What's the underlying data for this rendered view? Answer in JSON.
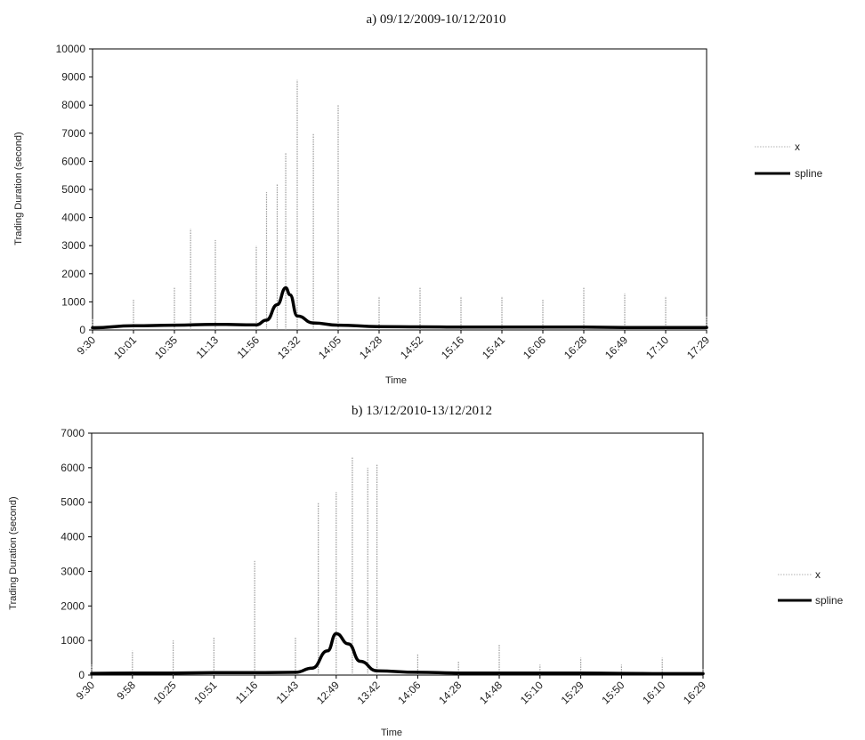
{
  "chart_data": [
    {
      "type": "line",
      "title": "a) 09/12/2009-10/12/2010",
      "xlabel": "Time",
      "ylabel": "Trading Duration (second)",
      "ylim": [
        0,
        10000
      ],
      "y_ticks": [
        "0",
        "1000",
        "2000",
        "3000",
        "4000",
        "5000",
        "6000",
        "7000",
        "8000",
        "9000",
        "10000"
      ],
      "x_tick_labels": [
        "9:30",
        "10:01",
        "10:35",
        "11:13",
        "11:56",
        "13:32",
        "14:05",
        "14:28",
        "14:52",
        "15:16",
        "15:41",
        "16:06",
        "16:28",
        "16:49",
        "17:10",
        "17:29"
      ],
      "grid": false,
      "legend": {
        "position": "right",
        "entries": [
          "x",
          "spline"
        ]
      },
      "series": [
        {
          "name": "x",
          "style": "thin dotted gray vertical spikes",
          "color": "#9a9a9a",
          "x": [
            "9:30",
            "10:01",
            "10:35",
            "10:50",
            "11:13",
            "11:56",
            "12:20",
            "12:45",
            "13:05",
            "13:32",
            "13:45",
            "14:05",
            "14:28",
            "14:52",
            "15:16",
            "15:41",
            "16:06",
            "16:28",
            "16:49",
            "17:10",
            "17:29"
          ],
          "values": [
            400,
            1100,
            1500,
            3600,
            3200,
            3000,
            4900,
            5200,
            6300,
            8900,
            7000,
            8000,
            1200,
            1500,
            1200,
            1200,
            1100,
            1500,
            1300,
            1200,
            500
          ]
        },
        {
          "name": "spline",
          "style": "thick solid black line",
          "color": "#000000",
          "x": [
            "9:30",
            "10:01",
            "10:35",
            "11:13",
            "11:56",
            "12:20",
            "12:45",
            "13:05",
            "13:15",
            "13:32",
            "13:45",
            "14:05",
            "14:28",
            "14:52",
            "15:16",
            "15:41",
            "16:06",
            "16:28",
            "16:49",
            "17:10",
            "17:29"
          ],
          "values": [
            80,
            150,
            170,
            200,
            180,
            350,
            900,
            1500,
            1250,
            500,
            250,
            170,
            120,
            110,
            100,
            100,
            100,
            100,
            90,
            90,
            90
          ]
        }
      ]
    },
    {
      "type": "line",
      "title": "b) 13/12/2010-13/12/2012",
      "xlabel": "Time",
      "ylabel": "Trading Duration (second)",
      "ylim": [
        0,
        7000
      ],
      "y_ticks": [
        "0",
        "1000",
        "2000",
        "3000",
        "4000",
        "5000",
        "6000",
        "7000"
      ],
      "x_tick_labels": [
        "9:30",
        "9:58",
        "10:25",
        "10:51",
        "11:16",
        "11:43",
        "12:49",
        "13:42",
        "14:06",
        "14:28",
        "14:48",
        "15:10",
        "15:29",
        "15:50",
        "16:10",
        "16:29"
      ],
      "grid": false,
      "legend": {
        "position": "right",
        "entries": [
          "x",
          "spline"
        ]
      },
      "series": [
        {
          "name": "x",
          "style": "thin dotted gray vertical spikes",
          "color": "#9a9a9a",
          "x": [
            "9:30",
            "9:58",
            "10:25",
            "10:51",
            "11:16",
            "11:43",
            "12:20",
            "12:49",
            "13:10",
            "13:30",
            "13:42",
            "14:06",
            "14:28",
            "14:48",
            "15:10",
            "15:29",
            "15:50",
            "16:10",
            "16:29"
          ],
          "values": [
            300,
            700,
            1000,
            1100,
            3300,
            1100,
            5000,
            5300,
            6300,
            6000,
            6100,
            600,
            400,
            900,
            300,
            500,
            300,
            500,
            200
          ]
        },
        {
          "name": "spline",
          "style": "thick solid black line",
          "color": "#000000",
          "x": [
            "9:30",
            "9:58",
            "10:25",
            "10:51",
            "11:16",
            "11:43",
            "12:10",
            "12:35",
            "12:49",
            "13:05",
            "13:20",
            "13:42",
            "14:06",
            "14:28",
            "14:48",
            "15:10",
            "15:29",
            "15:50",
            "16:10",
            "16:29"
          ],
          "values": [
            50,
            60,
            60,
            70,
            70,
            80,
            200,
            700,
            1200,
            900,
            400,
            120,
            80,
            60,
            60,
            60,
            60,
            50,
            40,
            40
          ]
        }
      ]
    }
  ]
}
